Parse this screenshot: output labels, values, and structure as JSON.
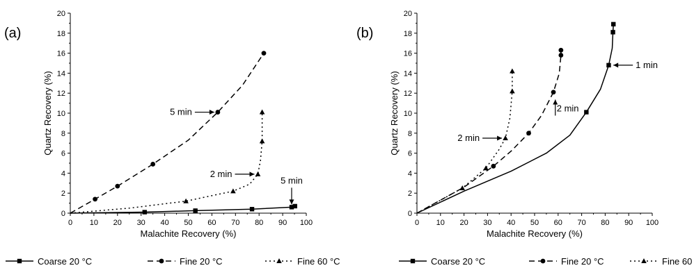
{
  "figure": {
    "legend": [
      {
        "label": "Coarse 20 °C",
        "dash": "solid",
        "marker": "square"
      },
      {
        "label": "Fine 20 °C",
        "dash": "dash",
        "marker": "circle"
      },
      {
        "label": "Fine 60 °C",
        "dash": "dot",
        "marker": "triangle"
      }
    ]
  },
  "chart_data": [
    {
      "type": "line",
      "panel_label": "(a)",
      "xlabel": "Malachite Recovery (%)",
      "ylabel": "Quartz Recovery (%)",
      "xlim": [
        0,
        100
      ],
      "ylim": [
        0,
        20
      ],
      "xticks": [
        0,
        10,
        20,
        30,
        40,
        50,
        60,
        70,
        80,
        90,
        100
      ],
      "yticks": [
        0,
        2,
        4,
        6,
        8,
        10,
        12,
        14,
        16,
        18,
        20
      ],
      "grid": false,
      "legend_position": "bottom",
      "series": [
        {
          "name": "Coarse 20 °C",
          "style": "solid",
          "marker": "square",
          "x": [
            0,
            31.5,
            53,
            77,
            93.8,
            95.2
          ],
          "y": [
            0,
            0.1,
            0.25,
            0.4,
            0.6,
            0.7
          ]
        },
        {
          "name": "Fine 20 °C",
          "style": "dash",
          "marker": "circle",
          "x": [
            0,
            10.5,
            20,
            35,
            62.5,
            82
          ],
          "y": [
            0,
            1.4,
            2.7,
            4.9,
            10.1,
            16
          ]
        },
        {
          "name": "Fine 60 °C",
          "style": "dot",
          "marker": "triangle",
          "x": [
            0,
            49,
            69,
            79.5,
            81.3,
            81.3
          ],
          "y": [
            0,
            1.2,
            2.2,
            3.9,
            7.2,
            10.1
          ]
        }
      ],
      "curves": [
        {
          "series": "Coarse 20 °C",
          "x": [
            0,
            31.5,
            53,
            77,
            93.8,
            95.2
          ],
          "y": [
            0,
            0.1,
            0.25,
            0.4,
            0.6,
            0.7
          ]
        },
        {
          "series": "Fine 20 °C",
          "x": [
            0,
            10.5,
            20,
            35,
            50,
            62.5,
            73,
            82
          ],
          "y": [
            0,
            1.4,
            2.7,
            4.9,
            7.3,
            10.1,
            12.8,
            16
          ]
        },
        {
          "series": "Fine 60 °C",
          "x": [
            0,
            25,
            49,
            69,
            76,
            79.5,
            80.6,
            81.3,
            81.3
          ],
          "y": [
            0,
            0.5,
            1.2,
            2.2,
            2.9,
            3.9,
            5.3,
            7.2,
            10.1
          ]
        }
      ],
      "annotations": [
        {
          "text": "5 min",
          "target": [
            62.5,
            10.1
          ],
          "label_at": [
            38,
            10.2
          ],
          "arrow": "right"
        },
        {
          "text": "2 min",
          "target": [
            79.5,
            3.9
          ],
          "label_at": [
            56,
            3.9
          ],
          "arrow": "right"
        },
        {
          "text": "5 min",
          "target": [
            93.8,
            0.6
          ],
          "label_at": [
            92,
            2.2
          ],
          "arrow": "down"
        }
      ]
    },
    {
      "type": "line",
      "panel_label": "(b)",
      "xlabel": "Malachite Recovery (%)",
      "ylabel": "Quartz Recovery (%)",
      "xlim": [
        0,
        100
      ],
      "ylim": [
        0,
        20
      ],
      "xticks": [
        0,
        10,
        20,
        30,
        40,
        50,
        60,
        70,
        80,
        90,
        100
      ],
      "yticks": [
        0,
        2,
        4,
        6,
        8,
        10,
        12,
        14,
        16,
        18,
        20
      ],
      "grid": false,
      "legend_position": "bottom",
      "series": [
        {
          "name": "Coarse 20 °C",
          "style": "solid",
          "marker": "square",
          "x": [
            0,
            72,
            81.5,
            83.3,
            83.5
          ],
          "y": [
            0,
            10.1,
            14.8,
            18.1,
            18.9
          ]
        },
        {
          "name": "Fine 20 °C",
          "style": "dash",
          "marker": "circle",
          "x": [
            0,
            32.5,
            47.5,
            58,
            61.2,
            61.2
          ],
          "y": [
            0,
            4.7,
            8.0,
            12.1,
            15.8,
            16.3
          ]
        },
        {
          "name": "Fine 60 °C",
          "style": "dot",
          "marker": "triangle",
          "x": [
            0,
            19.3,
            29.3,
            37.6,
            40.5,
            40.5
          ],
          "y": [
            0,
            2.5,
            4.5,
            7.5,
            12.2,
            14.2
          ]
        }
      ],
      "curves": [
        {
          "series": "Coarse 20 °C",
          "x": [
            0,
            20,
            40,
            55,
            65,
            72,
            78,
            81.5,
            83,
            83.3,
            83.5
          ],
          "y": [
            0,
            2.2,
            4.2,
            6.0,
            7.8,
            10.1,
            12.4,
            14.8,
            16.5,
            18.1,
            18.9
          ]
        },
        {
          "series": "Fine 20 °C",
          "x": [
            0,
            20,
            32.5,
            40,
            47.5,
            53,
            58,
            60.5,
            61.2,
            61.2
          ],
          "y": [
            0,
            2.6,
            4.7,
            6.2,
            8.0,
            9.8,
            12.1,
            14.0,
            15.8,
            16.3
          ]
        },
        {
          "series": "Fine 60 °C",
          "x": [
            0,
            19.3,
            29.3,
            35,
            37.6,
            39.5,
            40.5,
            40.5
          ],
          "y": [
            0,
            2.5,
            4.5,
            6.4,
            7.5,
            9.5,
            12.2,
            14.2
          ]
        }
      ],
      "annotations": [
        {
          "text": "2 min",
          "target": [
            37.6,
            7.5
          ],
          "label_at": [
            17,
            7.5
          ],
          "arrow": "right"
        },
        {
          "text": "2 min",
          "target": [
            58.8,
            11.7
          ],
          "label_at": [
            62,
            9.2
          ],
          "arrow": "up"
        },
        {
          "text": "1 min",
          "target": [
            82.0,
            14.8
          ],
          "label_at": [
            96,
            14.6
          ],
          "arrow": "left"
        }
      ]
    }
  ]
}
